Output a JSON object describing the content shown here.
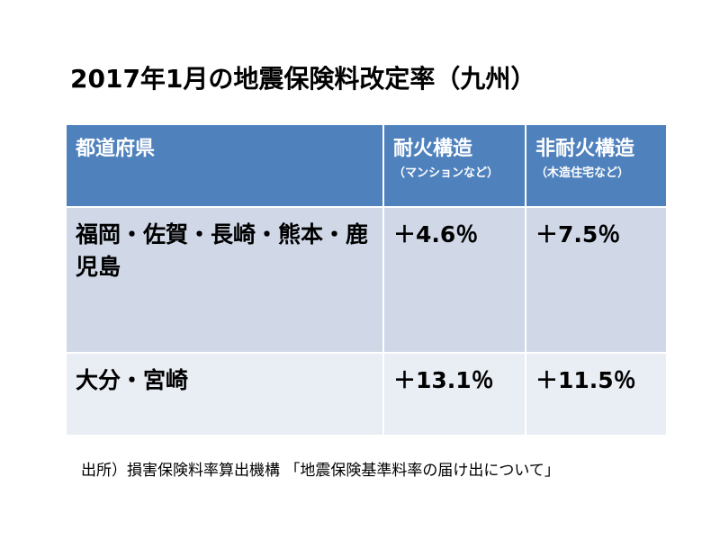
{
  "title": "2017年1月の地震保険料改定率（九州）",
  "table": {
    "header": [
      {
        "main": "都道府県"
      },
      {
        "main": "耐火構造",
        "sub": "（マンションなど）"
      },
      {
        "main": "非耐火構造",
        "sub": "（木造住宅など）"
      }
    ],
    "rows": [
      [
        "福岡・佐賀・長崎・熊本・鹿児島",
        "＋4.6％",
        "＋7.5％"
      ],
      [
        "大分・宮崎",
        "＋13.1％",
        "＋11.5％"
      ]
    ]
  },
  "source": "出所）損害保険料率算出機構 「地震保険基準料率の届け出について」"
}
